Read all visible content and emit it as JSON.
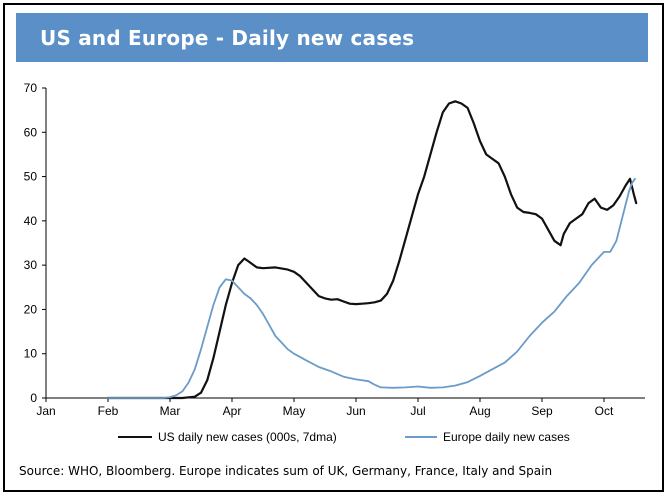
{
  "title": "US and Europe - Daily new cases",
  "source": "Source: WHO, Bloomberg. Europe indicates sum of UK, Germany, France, Italy and Spain",
  "colors": {
    "banner": "#5b8fc7",
    "us": "#111111",
    "europe": "#6b9bc8"
  },
  "chart_data": {
    "type": "line",
    "title": "US and Europe - Daily new cases",
    "xlabel": "",
    "ylabel": "",
    "ylim": [
      0,
      70
    ],
    "yticks": [
      0,
      10,
      20,
      30,
      40,
      50,
      60,
      70
    ],
    "xlim": [
      0,
      9.55
    ],
    "xticks": [
      {
        "label": "Jan",
        "x": 0
      },
      {
        "label": "Feb",
        "x": 1
      },
      {
        "label": "Mar",
        "x": 2
      },
      {
        "label": "Apr",
        "x": 3
      },
      {
        "label": "May",
        "x": 4
      },
      {
        "label": "Jun",
        "x": 5
      },
      {
        "label": "Jul",
        "x": 6
      },
      {
        "label": "Aug",
        "x": 7
      },
      {
        "label": "Sep",
        "x": 8
      },
      {
        "label": "Oct",
        "x": 9
      }
    ],
    "grid": false,
    "legend": "bottom",
    "series": [
      {
        "name": "US daily new cases (000s, 7dma)",
        "color": "#111111",
        "points": [
          [
            1.0,
            0
          ],
          [
            2.0,
            0
          ],
          [
            2.2,
            0
          ],
          [
            2.4,
            0.3
          ],
          [
            2.5,
            1.2
          ],
          [
            2.6,
            4
          ],
          [
            2.7,
            9
          ],
          [
            2.8,
            15
          ],
          [
            2.9,
            21
          ],
          [
            3.0,
            26
          ],
          [
            3.1,
            30
          ],
          [
            3.2,
            31.5
          ],
          [
            3.3,
            30.5
          ],
          [
            3.4,
            29.5
          ],
          [
            3.5,
            29.3
          ],
          [
            3.7,
            29.5
          ],
          [
            3.9,
            29
          ],
          [
            4.0,
            28.5
          ],
          [
            4.1,
            27.5
          ],
          [
            4.2,
            26
          ],
          [
            4.3,
            24.5
          ],
          [
            4.4,
            23
          ],
          [
            4.5,
            22.5
          ],
          [
            4.6,
            22.2
          ],
          [
            4.7,
            22.3
          ],
          [
            4.8,
            21.8
          ],
          [
            4.9,
            21.3
          ],
          [
            5.0,
            21.2
          ],
          [
            5.1,
            21.3
          ],
          [
            5.2,
            21.4
          ],
          [
            5.3,
            21.6
          ],
          [
            5.4,
            22
          ],
          [
            5.5,
            23.5
          ],
          [
            5.6,
            26.5
          ],
          [
            5.7,
            31
          ],
          [
            5.8,
            36
          ],
          [
            5.9,
            41
          ],
          [
            6.0,
            46
          ],
          [
            6.1,
            50
          ],
          [
            6.2,
            55
          ],
          [
            6.3,
            60
          ],
          [
            6.4,
            64.5
          ],
          [
            6.5,
            66.5
          ],
          [
            6.6,
            67
          ],
          [
            6.7,
            66.5
          ],
          [
            6.8,
            65.5
          ],
          [
            6.9,
            62
          ],
          [
            7.0,
            58
          ],
          [
            7.1,
            55
          ],
          [
            7.2,
            54
          ],
          [
            7.3,
            53
          ],
          [
            7.4,
            50
          ],
          [
            7.5,
            46
          ],
          [
            7.6,
            43
          ],
          [
            7.7,
            42
          ],
          [
            7.8,
            41.8
          ],
          [
            7.9,
            41.5
          ],
          [
            8.0,
            40.5
          ],
          [
            8.1,
            38
          ],
          [
            8.2,
            35.5
          ],
          [
            8.3,
            34.5
          ],
          [
            8.35,
            37
          ],
          [
            8.45,
            39.5
          ],
          [
            8.55,
            40.5
          ],
          [
            8.65,
            41.5
          ],
          [
            8.75,
            44
          ],
          [
            8.85,
            45
          ],
          [
            8.95,
            43
          ],
          [
            9.05,
            42.5
          ],
          [
            9.15,
            43.5
          ],
          [
            9.25,
            45.5
          ],
          [
            9.35,
            48
          ],
          [
            9.42,
            49.5
          ],
          [
            9.48,
            46
          ],
          [
            9.52,
            44
          ]
        ]
      },
      {
        "name": "Europe daily new cases",
        "color": "#6b9bc8",
        "points": [
          [
            1.0,
            0
          ],
          [
            1.9,
            0
          ],
          [
            2.0,
            0.2
          ],
          [
            2.1,
            0.6
          ],
          [
            2.2,
            1.5
          ],
          [
            2.3,
            3.5
          ],
          [
            2.4,
            6.5
          ],
          [
            2.5,
            11
          ],
          [
            2.6,
            16
          ],
          [
            2.7,
            21
          ],
          [
            2.8,
            25
          ],
          [
            2.9,
            26.8
          ],
          [
            3.0,
            26.5
          ],
          [
            3.1,
            25
          ],
          [
            3.2,
            23.5
          ],
          [
            3.3,
            22.5
          ],
          [
            3.4,
            21
          ],
          [
            3.5,
            19
          ],
          [
            3.6,
            16.5
          ],
          [
            3.7,
            14
          ],
          [
            3.8,
            12.5
          ],
          [
            3.9,
            11
          ],
          [
            4.0,
            10
          ],
          [
            4.2,
            8.5
          ],
          [
            4.4,
            7
          ],
          [
            4.6,
            6
          ],
          [
            4.8,
            4.8
          ],
          [
            5.0,
            4.2
          ],
          [
            5.2,
            3.8
          ],
          [
            5.3,
            3
          ],
          [
            5.4,
            2.4
          ],
          [
            5.6,
            2.3
          ],
          [
            5.8,
            2.4
          ],
          [
            6.0,
            2.6
          ],
          [
            6.2,
            2.3
          ],
          [
            6.4,
            2.4
          ],
          [
            6.6,
            2.8
          ],
          [
            6.8,
            3.6
          ],
          [
            7.0,
            5
          ],
          [
            7.2,
            6.5
          ],
          [
            7.4,
            8
          ],
          [
            7.6,
            10.5
          ],
          [
            7.8,
            14
          ],
          [
            8.0,
            17
          ],
          [
            8.2,
            19.5
          ],
          [
            8.4,
            23
          ],
          [
            8.6,
            26
          ],
          [
            8.8,
            30
          ],
          [
            9.0,
            33
          ],
          [
            9.1,
            33
          ],
          [
            9.2,
            35.5
          ],
          [
            9.3,
            41
          ],
          [
            9.4,
            46.5
          ],
          [
            9.45,
            48.5
          ],
          [
            9.5,
            49.5
          ]
        ]
      }
    ]
  }
}
